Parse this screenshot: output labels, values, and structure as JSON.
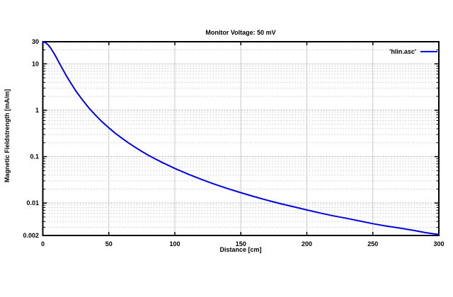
{
  "window": {
    "background": "#ffffff"
  },
  "colors": {
    "line": "#0000e0",
    "border": "#000000",
    "grid_vertical": "#c8c8c8",
    "grid_major": "#a8a8a8",
    "grid_minor": "#cccccc",
    "text": "#000000"
  },
  "chart_data": {
    "type": "line",
    "title": "Monitor Voltage: 50 mV",
    "xlabel": "Distance [cm]",
    "ylabel": "Magnetic Fieldstrength [mA/m]",
    "x_scale": "linear",
    "y_scale": "log",
    "xlim": [
      0,
      300
    ],
    "ylim": [
      0.002,
      30
    ],
    "x_ticks": [
      0,
      50,
      100,
      150,
      200,
      250,
      300
    ],
    "x_tick_labels": [
      "0",
      "50",
      "100",
      "150",
      "200",
      "250",
      "300"
    ],
    "y_tick_values": [
      30,
      10,
      1,
      0.1,
      0.01,
      0.002
    ],
    "y_tick_labels": [
      "30",
      "10",
      "1",
      "0.1",
      "0.01",
      "0.002"
    ],
    "grid": "on",
    "legend": {
      "position": "top-right",
      "entries": [
        {
          "label": "'hlin.asc'",
          "color": "#0000e0"
        }
      ]
    },
    "series": [
      {
        "name": "'hlin.asc'",
        "color": "#0000e0",
        "points": [
          [
            0,
            29.8
          ],
          [
            2,
            28.7
          ],
          [
            4,
            25.7
          ],
          [
            6,
            21.8
          ],
          [
            8,
            17.7
          ],
          [
            10,
            14.1
          ],
          [
            12.5,
            10.4
          ],
          [
            15,
            7.72
          ],
          [
            17.5,
            5.77
          ],
          [
            20,
            4.37
          ],
          [
            25,
            2.62
          ],
          [
            30,
            1.67
          ],
          [
            35,
            1.11
          ],
          [
            40,
            0.776
          ],
          [
            45,
            0.56
          ],
          [
            50,
            0.417
          ],
          [
            55,
            0.318
          ],
          [
            60,
            0.248
          ],
          [
            65,
            0.197
          ],
          [
            70,
            0.159
          ],
          [
            75,
            0.13
          ],
          [
            80,
            0.107
          ],
          [
            85,
            0.09
          ],
          [
            90,
            0.076
          ],
          [
            100,
            0.0557
          ],
          [
            110,
            0.042
          ],
          [
            120,
            0.0325
          ],
          [
            130,
            0.0256
          ],
          [
            140,
            0.0205
          ],
          [
            150,
            0.0167
          ],
          [
            160,
            0.0138
          ],
          [
            170,
            0.0115
          ],
          [
            180,
            0.0097
          ],
          [
            190,
            0.0083
          ],
          [
            200,
            0.0071
          ],
          [
            210,
            0.0061
          ],
          [
            220,
            0.0053
          ],
          [
            230,
            0.0047
          ],
          [
            240,
            0.0041
          ],
          [
            250,
            0.0036
          ],
          [
            260,
            0.0032
          ],
          [
            270,
            0.0029
          ],
          [
            280,
            0.0026
          ],
          [
            290,
            0.0023
          ],
          [
            300,
            0.0021
          ]
        ]
      }
    ]
  }
}
